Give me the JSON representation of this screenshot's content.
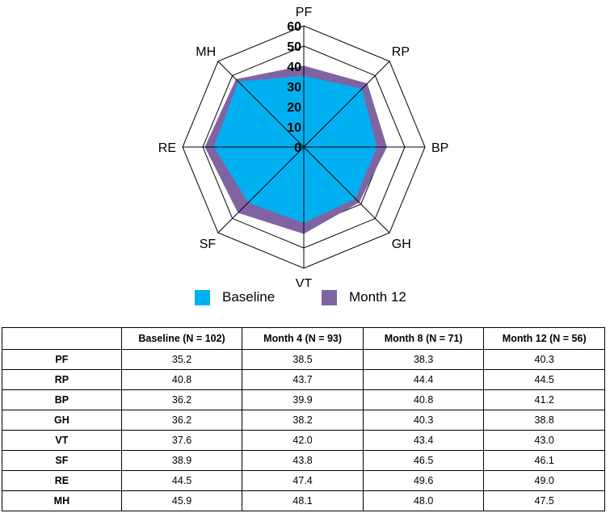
{
  "chart_data": {
    "type": "radar",
    "axes": [
      "PF",
      "RP",
      "BP",
      "GH",
      "VT",
      "SF",
      "RE",
      "MH"
    ],
    "r_ticks": [
      0,
      10,
      20,
      30,
      40,
      50,
      60
    ],
    "rlim": [
      0,
      60
    ],
    "series": [
      {
        "name": "Baseline",
        "values": [
          35.2,
          40.8,
          36.2,
          36.2,
          37.6,
          38.9,
          44.5,
          45.9
        ],
        "color": "#00b0f0"
      },
      {
        "name": "Month 12",
        "values": [
          40.3,
          44.5,
          41.2,
          38.8,
          43.0,
          46.1,
          49.0,
          47.5
        ],
        "color": "#8064a2"
      }
    ],
    "legend_position": "bottom"
  },
  "table": {
    "headers": [
      "",
      "Baseline (N = 102)",
      "Month 4 (N = 93)",
      "Month 8 (N = 71)",
      "Month 12 (N = 56)"
    ],
    "rows": [
      {
        "label": "PF",
        "values": [
          "35.2",
          "38.5",
          "38.3",
          "40.3"
        ]
      },
      {
        "label": "RP",
        "values": [
          "40.8",
          "43.7",
          "44.4",
          "44.5"
        ]
      },
      {
        "label": "BP",
        "values": [
          "36.2",
          "39.9",
          "40.8",
          "41.2"
        ]
      },
      {
        "label": "GH",
        "values": [
          "36.2",
          "38.2",
          "40.3",
          "38.8"
        ]
      },
      {
        "label": "VT",
        "values": [
          "37.6",
          "42.0",
          "43.4",
          "43.0"
        ]
      },
      {
        "label": "SF",
        "values": [
          "38.9",
          "43.8",
          "46.5",
          "46.1"
        ]
      },
      {
        "label": "RE",
        "values": [
          "44.5",
          "47.4",
          "49.6",
          "49.0"
        ]
      },
      {
        "label": "MH",
        "values": [
          "45.9",
          "48.1",
          "48.0",
          "47.5"
        ]
      }
    ]
  }
}
